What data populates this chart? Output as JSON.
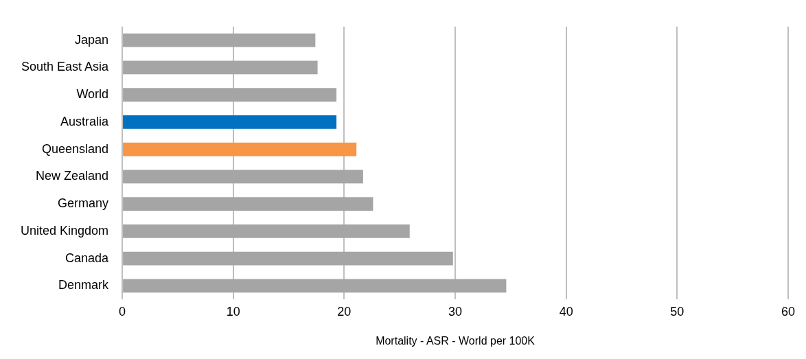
{
  "chart_data": {
    "type": "bar",
    "orientation": "horizontal",
    "xlabel": "Mortality - ASR - World per 100K",
    "categories": [
      "Japan",
      "South East Asia",
      "World",
      "Australia",
      "Queensland",
      "New Zealand",
      "Germany",
      "United Kingdom",
      "Canada",
      "Denmark"
    ],
    "values": [
      17.4,
      17.6,
      19.3,
      19.3,
      21.1,
      21.7,
      22.6,
      25.9,
      29.8,
      34.6
    ],
    "colors": [
      "#a5a5a5",
      "#a5a5a5",
      "#a5a5a5",
      "#0070c0",
      "#f79646",
      "#a5a5a5",
      "#a5a5a5",
      "#a5a5a5",
      "#a5a5a5",
      "#a5a5a5"
    ],
    "xlim": [
      0,
      60
    ],
    "xticks": [
      0,
      10,
      20,
      30,
      40,
      50,
      60
    ],
    "grid": "x",
    "legend": false
  }
}
